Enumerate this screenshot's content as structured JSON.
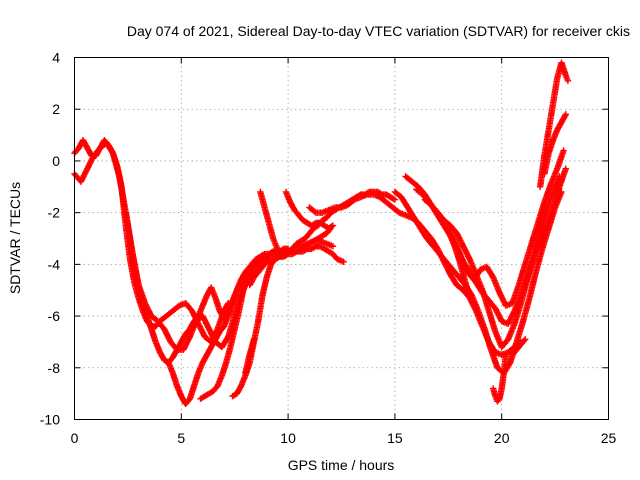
{
  "chart_data": {
    "type": "scatter",
    "title": "Day 074 of 2021, Sidereal Day-to-day VTEC variation (SDTVAR) for receiver ckis",
    "xlabel": "GPS time / hours",
    "ylabel": "SDTVAR / TECUs",
    "xlim": [
      0,
      25
    ],
    "ylim": [
      -10,
      4
    ],
    "x_ticks": [
      0,
      5,
      10,
      15,
      20,
      25
    ],
    "y_ticks": [
      -10,
      -8,
      -6,
      -4,
      -2,
      0,
      2,
      4
    ],
    "x_tick_labels": [
      "0",
      "5",
      "10",
      "15",
      "20",
      "25"
    ],
    "y_tick_labels": [
      "-10",
      "-8",
      "-6",
      "-4",
      "-2",
      "0",
      "2",
      "4"
    ],
    "grid": true,
    "legend": "none",
    "marker": "plus",
    "color": "#ff0000",
    "series": [
      {
        "x": [
          0.0,
          0.2,
          0.4,
          0.6,
          0.8,
          1.0,
          1.2,
          1.4,
          1.6,
          1.8,
          2.0,
          2.2,
          2.4,
          2.6,
          2.8,
          3.0,
          3.2,
          3.4,
          3.6,
          3.8,
          4.0,
          4.3,
          4.6,
          4.9,
          5.2,
          5.5,
          5.8,
          6.1,
          6.4,
          6.7,
          7.0,
          7.2
        ],
        "y": [
          0.3,
          0.5,
          0.8,
          0.5,
          0.2,
          0.2,
          0.5,
          0.8,
          0.6,
          0.3,
          -0.2,
          -1.0,
          -2.5,
          -3.8,
          -4.7,
          -5.3,
          -5.8,
          -6.2,
          -6.4,
          -6.4,
          -6.2,
          -6.0,
          -5.8,
          -5.6,
          -5.5,
          -5.8,
          -6.3,
          -6.8,
          -7.0,
          -6.5,
          -5.8,
          -5.5
        ]
      },
      {
        "x": [
          0.0,
          0.3,
          0.6,
          0.9,
          1.2,
          1.5,
          1.8,
          2.1,
          2.4,
          2.7,
          3.0,
          3.3,
          3.6,
          3.9,
          4.2,
          4.5,
          4.8,
          5.1,
          5.4,
          5.7,
          6.0,
          6.3,
          6.6,
          6.9,
          7.2,
          7.5,
          7.8,
          8.0,
          8.2,
          8.4,
          8.6,
          8.8
        ],
        "y": [
          -0.5,
          -0.8,
          -0.3,
          0.2,
          0.5,
          0.7,
          0.3,
          -0.6,
          -2.0,
          -3.5,
          -4.8,
          -5.5,
          -6.0,
          -6.2,
          -6.5,
          -7.0,
          -7.3,
          -7.3,
          -6.8,
          -6.2,
          -6.0,
          -6.5,
          -7.0,
          -7.2,
          -6.8,
          -6.0,
          -5.2,
          -4.8,
          -4.5,
          -4.3,
          -4.0,
          -3.8
        ]
      },
      {
        "x": [
          2.4,
          2.6,
          2.8,
          3.0,
          3.2,
          3.4,
          3.6,
          3.8,
          4.0,
          4.2,
          4.4,
          4.6,
          4.8,
          5.0,
          5.2,
          5.4,
          5.6,
          5.8,
          6.0,
          6.2,
          6.4,
          6.6,
          6.8,
          7.0,
          7.2,
          7.4,
          7.6,
          7.8,
          8.0,
          8.2,
          8.4,
          8.6,
          8.8,
          9.0,
          9.2,
          9.4,
          9.6,
          9.8,
          10.0
        ],
        "y": [
          -2.0,
          -3.0,
          -4.0,
          -4.8,
          -5.5,
          -6.0,
          -6.5,
          -7.0,
          -7.4,
          -7.7,
          -7.8,
          -7.6,
          -7.3,
          -7.0,
          -6.7,
          -6.5,
          -6.2,
          -6.0,
          -5.6,
          -5.2,
          -4.9,
          -5.3,
          -5.8,
          -6.1,
          -5.8,
          -5.4,
          -5.0,
          -4.7,
          -4.5,
          -4.3,
          -4.1,
          -3.9,
          -3.8,
          -3.7,
          -3.6,
          -3.5,
          -3.5,
          -3.4,
          -3.4
        ]
      },
      {
        "x": [
          4.4,
          4.6,
          4.8,
          5.0,
          5.2,
          5.4,
          5.6,
          5.8,
          6.0,
          6.2,
          6.4,
          6.6,
          6.8,
          7.0,
          7.2,
          7.4,
          7.6,
          7.8,
          8.0,
          8.2,
          8.4,
          8.6,
          8.8,
          9.0,
          9.2,
          9.4,
          9.6,
          9.8,
          10.0,
          10.3,
          10.6,
          10.9,
          11.2,
          11.5,
          11.8,
          12.1
        ],
        "y": [
          -7.8,
          -8.2,
          -8.7,
          -9.1,
          -9.4,
          -9.2,
          -8.7,
          -8.2,
          -7.8,
          -7.5,
          -7.2,
          -6.9,
          -6.6,
          -6.4,
          -6.0,
          -5.5,
          -5.0,
          -4.6,
          -4.3,
          -4.1,
          -3.9,
          -3.8,
          -3.8,
          -3.7,
          -3.6,
          -3.6,
          -3.6,
          -3.5,
          -3.5,
          -3.4,
          -3.3,
          -3.2,
          -3.1,
          -3.1,
          -3.2,
          -3.3
        ]
      },
      {
        "x": [
          5.9,
          6.1,
          6.3,
          6.5,
          6.7,
          6.9,
          7.1,
          7.3,
          7.5,
          7.7,
          7.9,
          8.1,
          8.3,
          8.5,
          8.7,
          8.9,
          9.1,
          9.3,
          9.5,
          9.7,
          9.9,
          10.1,
          10.3,
          10.5,
          10.7,
          10.9,
          11.1,
          11.3,
          11.5,
          11.7,
          11.9,
          12.1,
          12.3,
          12.6
        ],
        "y": [
          -9.2,
          -9.1,
          -9.0,
          -8.9,
          -8.7,
          -8.3,
          -7.8,
          -7.2,
          -6.5,
          -5.8,
          -5.0,
          -4.4,
          -4.0,
          -3.8,
          -3.7,
          -3.6,
          -3.6,
          -3.5,
          -3.5,
          -3.5,
          -3.5,
          -3.5,
          -3.5,
          -3.5,
          -3.5,
          -3.4,
          -3.4,
          -3.3,
          -3.3,
          -3.4,
          -3.5,
          -3.6,
          -3.8,
          -3.9
        ]
      },
      {
        "x": [
          7.4,
          7.6,
          7.8,
          8.0,
          8.2,
          8.4,
          8.6,
          8.8,
          9.0,
          9.2,
          9.4,
          9.6,
          9.8,
          10.0,
          10.2,
          10.4,
          10.6,
          10.8,
          11.0,
          11.2,
          11.4,
          11.6,
          11.8,
          12.0
        ],
        "y": [
          -9.1,
          -9.0,
          -8.7,
          -8.3,
          -7.8,
          -7.0,
          -6.2,
          -5.2,
          -4.5,
          -4.0,
          -3.8,
          -3.7,
          -3.7,
          -3.6,
          -3.6,
          -3.5,
          -3.4,
          -3.3,
          -3.2,
          -3.1,
          -3.0,
          -2.9,
          -2.8,
          -2.6
        ]
      },
      {
        "x": [
          8.0,
          8.2,
          8.4
        ],
        "y": [
          -8.2,
          -7.5,
          -6.9
        ]
      },
      {
        "x": [
          8.2,
          8.4,
          8.6,
          8.8,
          9.0,
          9.2,
          9.4,
          9.6,
          9.8,
          10.0,
          10.2,
          10.4,
          10.6,
          10.8,
          11.0,
          11.2,
          11.4,
          11.6,
          11.8,
          12.0,
          12.2,
          12.4,
          12.6,
          12.8,
          13.0,
          13.2,
          13.4,
          13.6,
          13.8,
          14.0,
          14.2,
          14.4,
          14.6,
          14.8,
          15.0
        ],
        "y": [
          -4.8,
          -4.5,
          -4.3,
          -4.1,
          -3.9,
          -3.8,
          -3.8,
          -3.7,
          -3.6,
          -3.5,
          -3.4,
          -3.2,
          -3.1,
          -3.0,
          -2.8,
          -2.6,
          -2.5,
          -2.3,
          -2.2,
          -2.0,
          -1.9,
          -1.8,
          -1.7,
          -1.6,
          -1.5,
          -1.4,
          -1.3,
          -1.3,
          -1.2,
          -1.2,
          -1.2,
          -1.3,
          -1.3,
          -1.4,
          -1.5
        ]
      },
      {
        "x": [
          8.7,
          8.8,
          8.9,
          9.0,
          9.1,
          9.2,
          9.3,
          9.4,
          9.5,
          9.6,
          9.7
        ],
        "y": [
          -1.2,
          -1.5,
          -1.8,
          -2.1,
          -2.4,
          -2.7,
          -3.0,
          -3.2,
          -3.4,
          -3.6,
          -3.7
        ]
      },
      {
        "x": [
          9.9,
          10.1,
          10.3,
          10.5,
          10.7,
          10.9,
          11.1,
          11.3,
          11.5,
          11.7,
          11.9,
          12.1
        ],
        "y": [
          -1.2,
          -1.6,
          -1.9,
          -2.1,
          -2.3,
          -2.4,
          -2.5,
          -2.4,
          -2.4,
          -2.5,
          -2.6,
          -2.5
        ]
      },
      {
        "x": [
          11.0,
          11.3,
          11.6,
          11.9,
          12.2,
          12.5,
          12.8,
          13.1,
          13.4,
          13.7,
          14.0,
          14.3,
          14.6,
          14.9,
          15.2,
          15.5,
          15.8,
          16.1,
          16.4,
          16.7,
          17.0,
          17.3,
          17.6,
          17.9,
          18.2,
          18.5,
          18.8,
          19.1,
          19.4,
          19.7,
          20.0,
          20.3,
          20.6,
          20.9
        ],
        "y": [
          -1.8,
          -2.0,
          -2.0,
          -1.9,
          -1.8,
          -1.8,
          -1.7,
          -1.5,
          -1.4,
          -1.3,
          -1.3,
          -1.4,
          -1.6,
          -1.8,
          -2.0,
          -2.1,
          -2.2,
          -2.4,
          -2.7,
          -3.0,
          -3.4,
          -3.9,
          -4.4,
          -4.8,
          -5.0,
          -5.3,
          -5.8,
          -6.4,
          -7.0,
          -7.4,
          -7.5,
          -7.4,
          -7.2,
          -7.0
        ]
      },
      {
        "x": [
          15.0,
          15.3,
          15.6,
          15.9,
          16.2,
          16.5,
          16.8,
          17.1,
          17.4,
          17.7,
          18.0,
          18.3,
          18.6,
          18.9,
          19.2,
          19.5,
          19.8,
          20.1,
          20.4,
          20.7,
          21.0,
          21.3,
          21.6,
          21.9,
          22.2,
          22.5,
          22.8
        ],
        "y": [
          -1.2,
          -1.4,
          -1.8,
          -2.2,
          -2.6,
          -3.0,
          -3.3,
          -3.6,
          -3.9,
          -4.2,
          -4.5,
          -4.8,
          -5.2,
          -5.8,
          -6.5,
          -7.3,
          -8.0,
          -8.2,
          -7.8,
          -7.0,
          -6.2,
          -5.3,
          -4.3,
          -3.4,
          -2.6,
          -1.8,
          -1.2
        ]
      },
      {
        "x": [
          15.5,
          15.8,
          16.1,
          16.4,
          16.7,
          17.0,
          17.3,
          17.6,
          17.9,
          18.2,
          18.5,
          18.8,
          19.1,
          19.4,
          19.7,
          20.0,
          20.3,
          20.6,
          20.9,
          21.2,
          21.5,
          21.8,
          22.1,
          22.4,
          22.7,
          23.0
        ],
        "y": [
          -0.6,
          -0.8,
          -1.0,
          -1.3,
          -1.7,
          -2.1,
          -2.5,
          -2.9,
          -3.4,
          -3.9,
          -4.3,
          -4.7,
          -5.1,
          -5.4,
          -5.7,
          -6.2,
          -6.3,
          -5.8,
          -5.2,
          -4.5,
          -3.8,
          -3.1,
          -2.5,
          -1.8,
          -1.0,
          -0.3
        ]
      },
      {
        "x": [
          16.0,
          16.3,
          16.6,
          16.9,
          17.2,
          17.5,
          17.8,
          18.1,
          18.4,
          18.7,
          19.0,
          19.3,
          19.6,
          19.9,
          20.2,
          20.5,
          20.8,
          21.1,
          21.4,
          21.7,
          22.0,
          22.3,
          22.6,
          22.9
        ],
        "y": [
          -1.1,
          -1.3,
          -1.6,
          -1.9,
          -2.2,
          -2.6,
          -3.1,
          -3.7,
          -4.3,
          -4.6,
          -4.2,
          -4.1,
          -4.5,
          -5.1,
          -5.6,
          -5.5,
          -4.8,
          -4.0,
          -3.2,
          -2.4,
          -1.6,
          -0.9,
          -0.3,
          0.4
        ]
      },
      {
        "x": [
          16.4,
          16.7,
          17.0,
          17.3,
          17.6,
          17.9,
          18.2,
          18.5,
          18.8,
          19.1,
          19.4,
          19.7,
          20.0,
          20.3,
          20.6,
          20.9,
          21.2,
          21.5,
          21.8,
          22.1,
          22.4,
          22.7
        ],
        "y": [
          -1.5,
          -1.7,
          -2.0,
          -2.3,
          -2.5,
          -2.8,
          -3.3,
          -3.8,
          -4.4,
          -5.0,
          -5.8,
          -6.6,
          -7.2,
          -6.9,
          -6.3,
          -5.5,
          -4.6,
          -3.6,
          -2.7,
          -1.9,
          -1.2,
          -0.6
        ]
      },
      {
        "x": [
          17.0,
          17.2,
          17.4,
          17.6,
          17.8,
          18.0,
          18.2,
          18.4
        ],
        "y": [
          -2.0,
          -2.2,
          -2.5,
          -2.9,
          -3.3,
          -3.8,
          -4.4,
          -5.0
        ]
      },
      {
        "x": [
          19.6,
          19.7,
          19.8,
          19.9,
          20.0,
          20.1,
          20.2
        ],
        "y": [
          -8.8,
          -9.1,
          -9.3,
          -9.2,
          -8.8,
          -8.2,
          -7.5
        ]
      },
      {
        "x": [
          20.5,
          20.7,
          20.9,
          21.1
        ],
        "y": [
          -7.5,
          -7.3,
          -7.1,
          -6.9
        ]
      },
      {
        "x": [
          21.8,
          22.0,
          22.2,
          22.4,
          22.6,
          22.8,
          23.0,
          23.1
        ],
        "y": [
          -1.0,
          0.2,
          1.2,
          2.2,
          3.2,
          3.8,
          3.3,
          3.1
        ]
      },
      {
        "x": [
          22.0,
          22.2,
          22.4,
          22.6,
          22.8,
          23.0
        ],
        "y": [
          -0.5,
          0.3,
          0.8,
          1.2,
          1.5,
          1.8
        ]
      }
    ]
  }
}
